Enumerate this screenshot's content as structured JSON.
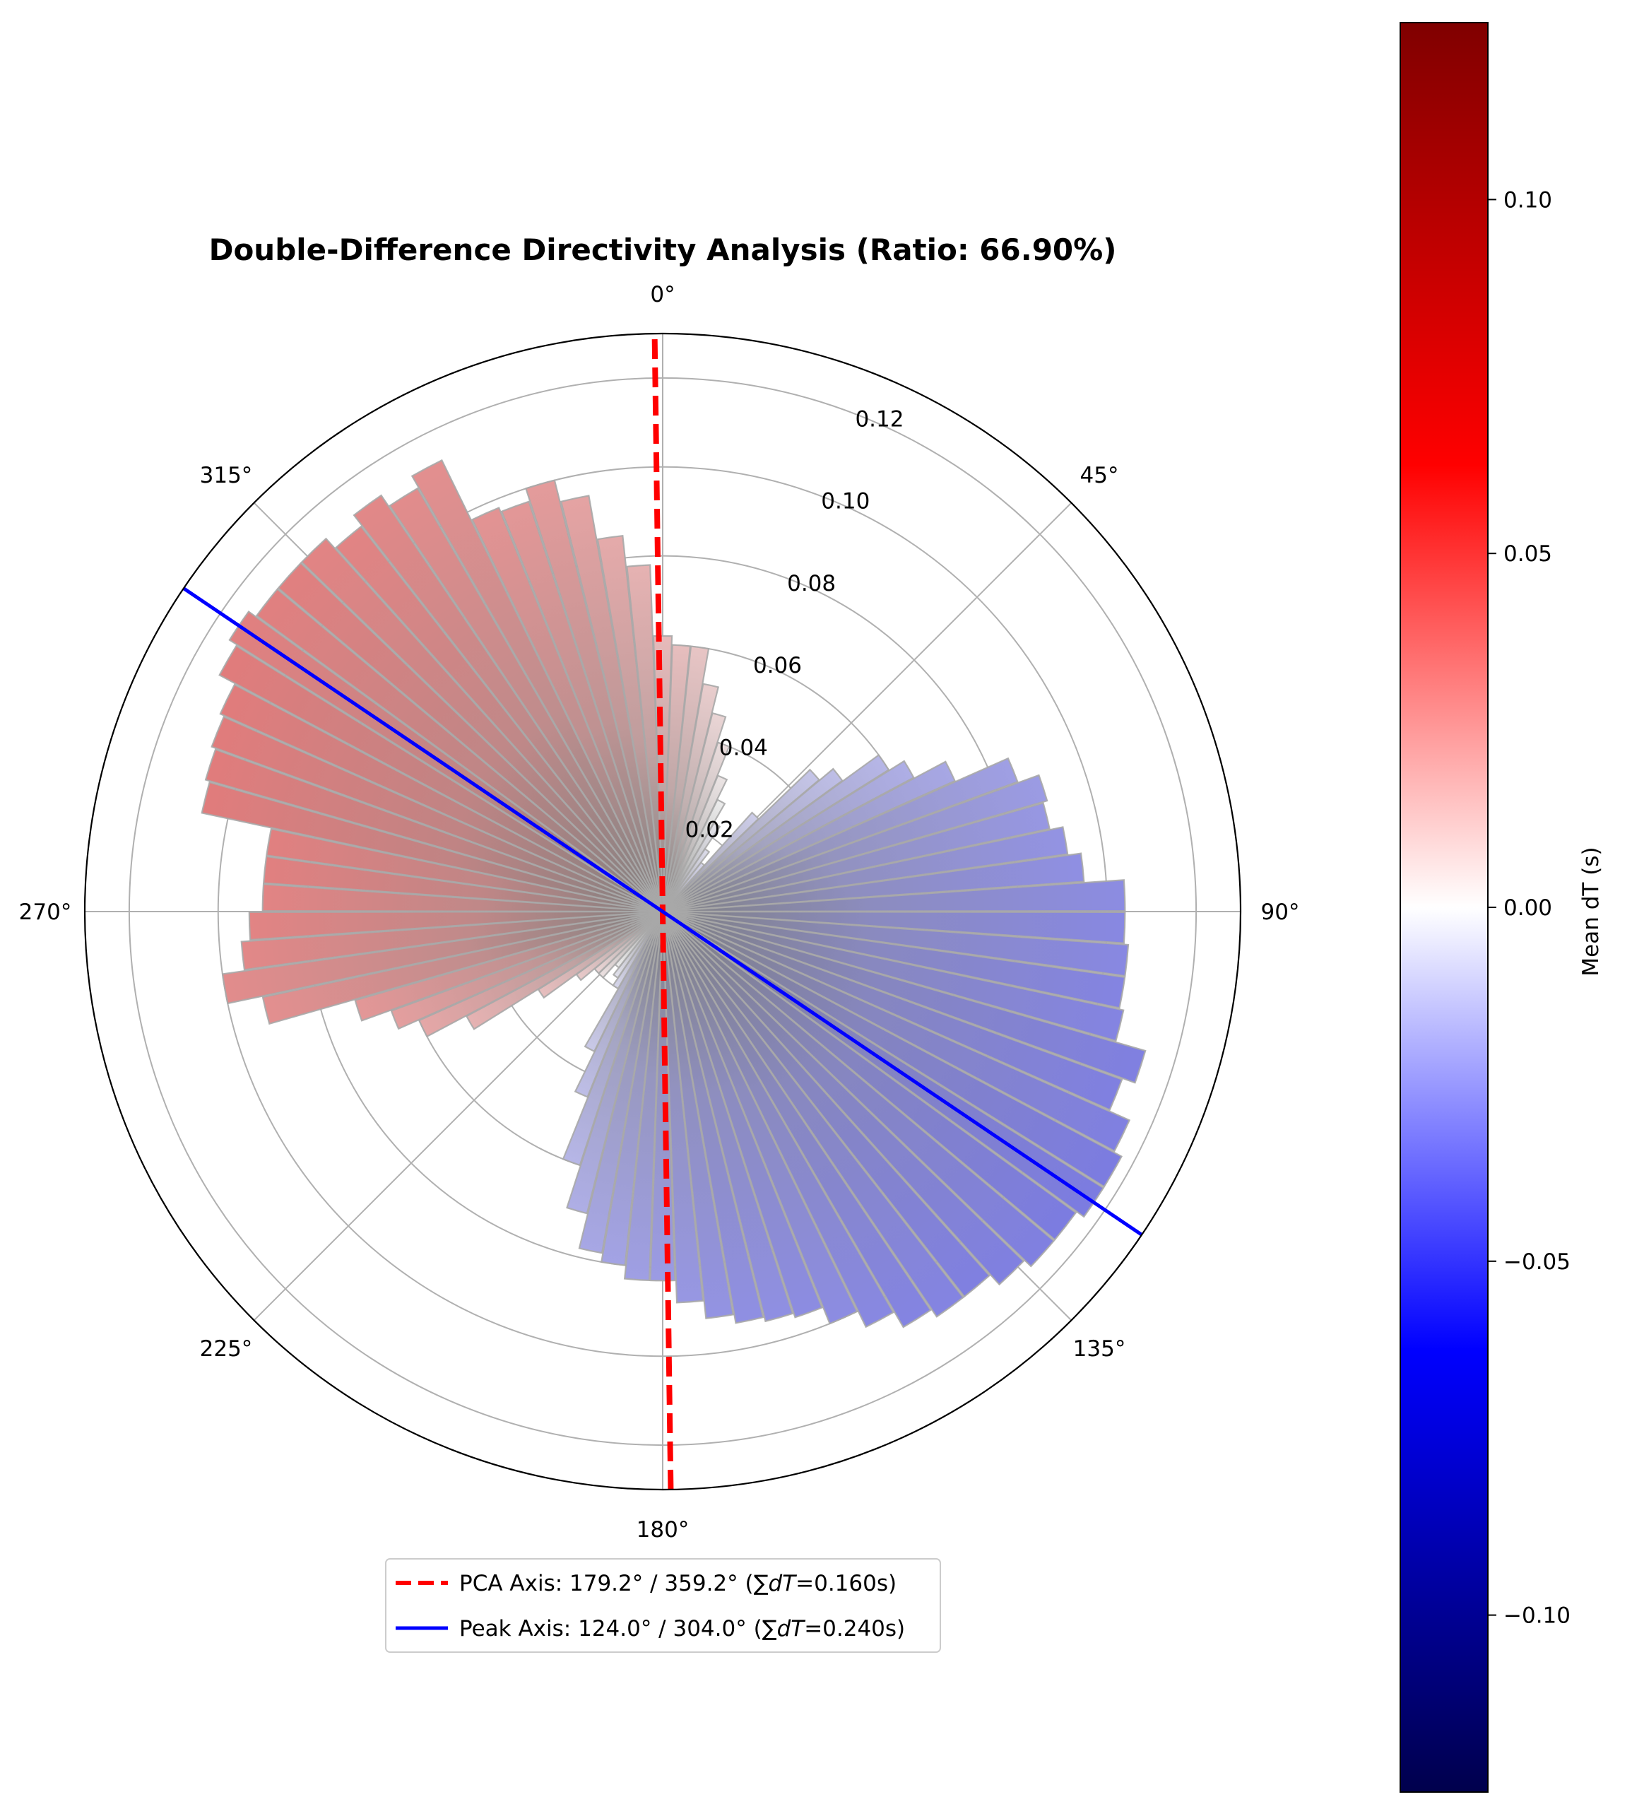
{
  "chart_data": {
    "type": "polar-bar",
    "title": "Double-Difference Directivity Analysis (Ratio: 66.90%)",
    "theta_unit": "deg",
    "theta_direction": "clockwise",
    "theta_zero": "N",
    "theta_tick_labels": [
      "0°",
      "45°",
      "90°",
      "135°",
      "180°",
      "225°",
      "270°",
      "315°"
    ],
    "r_ticks": [
      0.02,
      0.04,
      0.06,
      0.08,
      0.1,
      0.12
    ],
    "r_tick_labels": [
      "0.02",
      "0.04",
      "0.06",
      "0.08",
      "0.10",
      "0.12"
    ],
    "rlim": [
      0,
      0.13
    ],
    "grid": true,
    "bin_width_deg": 4,
    "bars": {
      "theta_deg": [
        0,
        4,
        8,
        12,
        16,
        20,
        24,
        28,
        32,
        36,
        40,
        44,
        48,
        52,
        56,
        60,
        64,
        68,
        72,
        76,
        80,
        84,
        88,
        92,
        96,
        100,
        104,
        108,
        112,
        116,
        120,
        124,
        128,
        132,
        136,
        140,
        144,
        148,
        152,
        156,
        160,
        164,
        168,
        172,
        176,
        180,
        184,
        188,
        192,
        196,
        200,
        204,
        208,
        212,
        216,
        220,
        224,
        228,
        232,
        236,
        240,
        244,
        248,
        252,
        256,
        260,
        264,
        268,
        272,
        276,
        280,
        284,
        288,
        292,
        296,
        300,
        304,
        308,
        312,
        316,
        320,
        324,
        328,
        332,
        336,
        340,
        344,
        348,
        352,
        356
      ],
      "r": [
        0.062,
        0.06,
        0.06,
        0.052,
        0.046,
        0.04,
        0.033,
        0.028,
        0.023,
        0.017,
        0.014,
        0.03,
        0.046,
        0.05,
        0.06,
        0.064,
        0.072,
        0.085,
        0.09,
        0.089,
        0.092,
        0.095,
        0.104,
        0.104,
        0.105,
        0.105,
        0.106,
        0.113,
        0.11,
        0.115,
        0.117,
        0.117,
        0.115,
        0.115,
        0.113,
        0.11,
        0.11,
        0.108,
        0.104,
        0.1,
        0.096,
        0.095,
        0.094,
        0.092,
        0.088,
        0.083,
        0.083,
        0.08,
        0.078,
        0.07,
        0.06,
        0.045,
        0.035,
        0.02,
        0.018,
        0.016,
        0.02,
        0.02,
        0.024,
        0.033,
        0.05,
        0.06,
        0.065,
        0.072,
        0.092,
        0.1,
        0.095,
        0.093,
        0.09,
        0.09,
        0.09,
        0.106,
        0.107,
        0.108,
        0.109,
        0.113,
        0.115,
        0.113,
        0.113,
        0.113,
        0.11,
        0.113,
        0.11,
        0.113,
        0.098,
        0.097,
        0.1,
        0.095,
        0.085,
        0.078
      ],
      "mean_dt_s": [
        0.013,
        0.012,
        0.01,
        0.008,
        0.006,
        0.004,
        0.002,
        0.0,
        -0.002,
        -0.004,
        -0.006,
        -0.008,
        -0.01,
        -0.012,
        -0.014,
        -0.016,
        -0.018,
        -0.02,
        -0.021,
        -0.022,
        -0.023,
        -0.024,
        -0.025,
        -0.026,
        -0.026,
        -0.027,
        -0.027,
        -0.028,
        -0.028,
        -0.028,
        -0.029,
        -0.029,
        -0.029,
        -0.028,
        -0.028,
        -0.028,
        -0.027,
        -0.027,
        -0.026,
        -0.025,
        -0.025,
        -0.024,
        -0.024,
        -0.023,
        -0.022,
        -0.021,
        -0.02,
        -0.019,
        -0.018,
        -0.016,
        -0.014,
        -0.012,
        -0.009,
        -0.006,
        -0.003,
        0.0,
        0.003,
        0.006,
        0.009,
        0.012,
        0.015,
        0.018,
        0.02,
        0.022,
        0.024,
        0.025,
        0.026,
        0.027,
        0.027,
        0.028,
        0.028,
        0.029,
        0.029,
        0.029,
        0.029,
        0.029,
        0.028,
        0.028,
        0.028,
        0.027,
        0.027,
        0.026,
        0.025,
        0.024,
        0.023,
        0.022,
        0.021,
        0.019,
        0.017,
        0.015
      ]
    },
    "axes_lines": [
      {
        "label": "PCA Axis: 179.2° / 359.2° (∑",
        "label_math": "dT",
        "label_suffix": "=0.160s)",
        "angle_deg": 179.2,
        "color": "#ff0000",
        "style": "dashed"
      },
      {
        "label": "Peak Axis: 124.0° / 304.0° (∑",
        "label_math": "dT",
        "label_suffix": "=0.240s)",
        "angle_deg": 124.0,
        "color": "#0000ff",
        "style": "solid"
      }
    ],
    "legend_position": "bottom-center",
    "colorbar": {
      "label": "Mean dT (s)",
      "range": [
        -0.125,
        0.125
      ],
      "ticks": [
        0.1,
        0.05,
        0.0,
        -0.05,
        -0.1
      ],
      "tick_labels": [
        "0.10",
        "0.05",
        "0.00",
        "−0.05",
        "−0.10"
      ],
      "colormap": "seismic"
    }
  }
}
